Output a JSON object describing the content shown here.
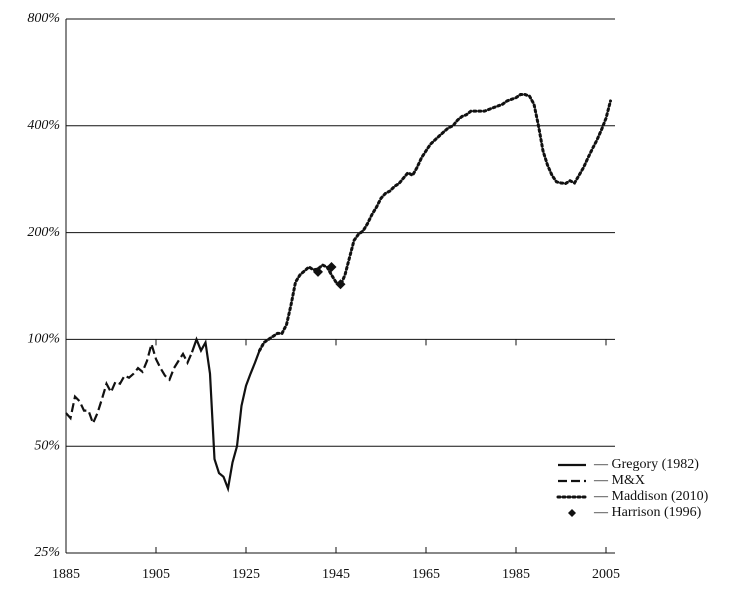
{
  "chart_data": {
    "type": "line",
    "log_scale": true,
    "xlim": [
      1885,
      2007
    ],
    "xticks": [
      1885,
      1905,
      1925,
      1945,
      1965,
      1985,
      2005
    ],
    "ylim": [
      25,
      800
    ],
    "yticks": [
      {
        "value": 25,
        "label": "25%"
      },
      {
        "value": 50,
        "label": "50%"
      },
      {
        "value": 100,
        "label": "100%"
      },
      {
        "value": 200,
        "label": "200%"
      },
      {
        "value": 400,
        "label": "400%"
      },
      {
        "value": 800,
        "label": "800%"
      }
    ],
    "grid": true,
    "legend": "lower right",
    "series": [
      {
        "name": "— Gregory (1982)",
        "color": "#111111",
        "style": "solid",
        "x": [
          1913,
          1914,
          1915,
          1916,
          1917,
          1918,
          1919,
          1920,
          1921,
          1922,
          1923,
          1924,
          1925,
          1926,
          1927,
          1928
        ],
        "values": [
          92,
          100,
          93,
          98,
          80,
          46,
          42,
          41,
          38,
          45,
          50,
          65,
          74,
          80,
          86,
          93
        ]
      },
      {
        "name": "— M&X",
        "color": "#111111",
        "style": "dashed",
        "x": [
          1885,
          1886,
          1887,
          1888,
          1889,
          1890,
          1891,
          1892,
          1893,
          1894,
          1895,
          1896,
          1897,
          1898,
          1899,
          1900,
          1901,
          1902,
          1903,
          1904,
          1905,
          1906,
          1907,
          1908,
          1909,
          1910,
          1911,
          1912,
          1913
        ],
        "values": [
          62,
          60,
          69,
          67,
          63,
          63,
          58,
          62,
          68,
          75,
          71,
          76,
          75,
          79,
          78,
          80,
          83,
          81,
          87,
          97,
          88,
          83,
          79,
          77,
          83,
          87,
          91,
          86,
          92
        ]
      },
      {
        "name": "— Maddison (2010)",
        "color": "#111111",
        "style": "dotted",
        "x": [
          1928,
          1929,
          1930,
          1931,
          1932,
          1933,
          1934,
          1935,
          1936,
          1937,
          1938,
          1939,
          1940,
          1941,
          1942,
          1943,
          1944,
          1945,
          1946,
          1947,
          1948,
          1949,
          1950,
          1951,
          1952,
          1953,
          1954,
          1955,
          1956,
          1957,
          1958,
          1959,
          1960,
          1961,
          1962,
          1963,
          1964,
          1965,
          1966,
          1967,
          1968,
          1969,
          1970,
          1971,
          1972,
          1973,
          1974,
          1975,
          1976,
          1977,
          1978,
          1979,
          1980,
          1981,
          1982,
          1983,
          1984,
          1985,
          1986,
          1987,
          1988,
          1989,
          1990,
          1991,
          1992,
          1993,
          1994,
          1995,
          1996,
          1997,
          1998,
          1999,
          2000,
          2001,
          2002,
          2003,
          2004,
          2005,
          2006
        ],
        "values": [
          93,
          98,
          100,
          102,
          104,
          104,
          110,
          125,
          145,
          152,
          156,
          160,
          157,
          158,
          162,
          160,
          152,
          145,
          142,
          152,
          170,
          190,
          198,
          202,
          212,
          225,
          236,
          250,
          258,
          262,
          270,
          275,
          285,
          295,
          290,
          305,
          325,
          340,
          355,
          365,
          375,
          385,
          395,
          400,
          415,
          425,
          430,
          440,
          440,
          440,
          440,
          445,
          450,
          455,
          460,
          470,
          475,
          480,
          490,
          490,
          485,
          460,
          400,
          340,
          310,
          290,
          278,
          276,
          275,
          280,
          276,
          290,
          305,
          325,
          345,
          365,
          390,
          420,
          470
        ]
      },
      {
        "name": "— Harrison (1996)",
        "color": "#111111",
        "style": "markers",
        "x": [
          1941,
          1944,
          1946
        ],
        "values": [
          155,
          160,
          143
        ]
      }
    ]
  }
}
